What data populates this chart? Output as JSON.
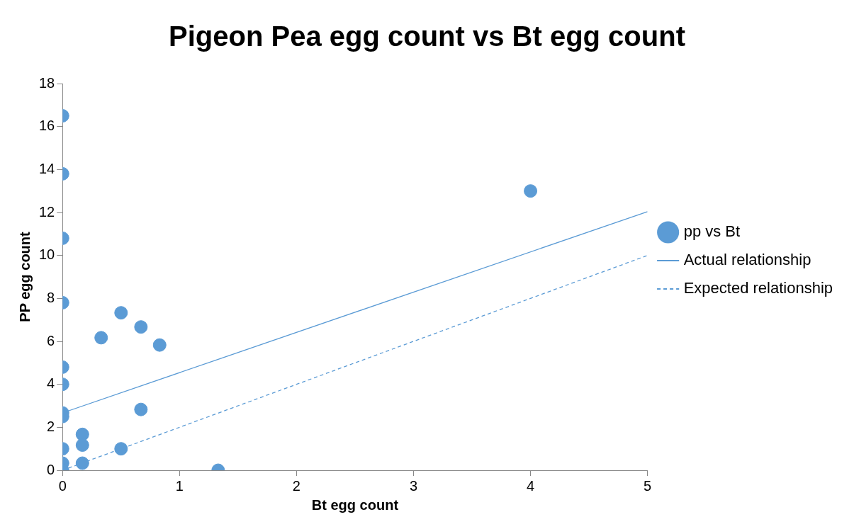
{
  "chart_data": {
    "type": "scatter",
    "title": "Pigeon Pea egg count vs Bt egg count",
    "xlabel": "Bt egg count",
    "ylabel": "PP egg count",
    "xlim": [
      0,
      5
    ],
    "xticks": [
      0,
      1,
      2,
      3,
      4,
      5
    ],
    "ylim": [
      0,
      18
    ],
    "yticks": [
      0,
      2,
      4,
      6,
      8,
      10,
      12,
      14,
      16,
      18
    ],
    "grid": false,
    "legend": "right",
    "series": [
      {
        "name": "pp vs Bt",
        "marker": "circle",
        "color": "#5b9bd5",
        "x": [
          0,
          0,
          0,
          0,
          0,
          0,
          0,
          0,
          0,
          0,
          0,
          0.17,
          0.17,
          0.17,
          0.33,
          0.5,
          0.5,
          0.67,
          0.67,
          0.83,
          1.33,
          4
        ],
        "values": [
          16.5,
          13.8,
          10.8,
          7.8,
          4.8,
          4,
          2.67,
          2.5,
          1,
          0.33,
          0,
          1.67,
          1.17,
          0.33,
          6.17,
          7.33,
          1,
          6.67,
          2.83,
          5.83,
          0,
          13
        ]
      },
      {
        "name": "Actual relationship",
        "type": "line",
        "marker": "none",
        "line_style": "solid",
        "color": "#5b9bd5",
        "x": [
          0,
          5
        ],
        "values": [
          2.67,
          12.04
        ]
      },
      {
        "name": "Expected relationship",
        "type": "line",
        "marker": "none",
        "line_style": "dashed",
        "color": "#5b9bd5",
        "x": [
          0,
          5
        ],
        "values": [
          0,
          10
        ]
      }
    ]
  }
}
